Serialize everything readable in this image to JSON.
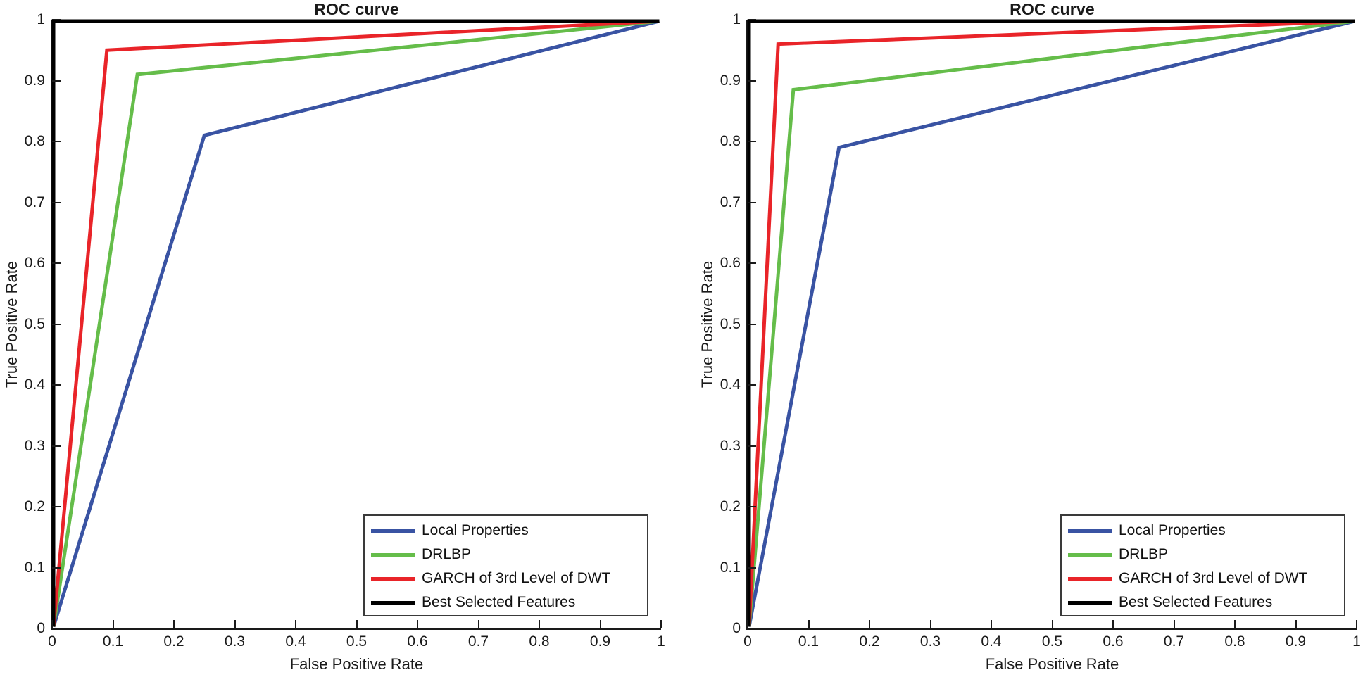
{
  "figure": {
    "background": "#ffffff",
    "axis_color": "#1a1a1a"
  },
  "chart_data": [
    {
      "type": "line",
      "title": "ROC curve",
      "xlabel": "False Positive Rate",
      "ylabel": "True Positive Rate",
      "xlim": [
        0,
        1
      ],
      "ylim": [
        0,
        1
      ],
      "grid": false,
      "legend_position": "lower right",
      "x_ticks": [
        0,
        0.1,
        0.2,
        0.3,
        0.4,
        0.5,
        0.6,
        0.7,
        0.8,
        0.9,
        1
      ],
      "x_tick_labels": [
        "0",
        "0.1",
        "0.2",
        "0.3",
        "0.4",
        "0.5",
        "0.6",
        "0.7",
        "0.8",
        "0.9",
        "1"
      ],
      "y_ticks": [
        0,
        0.1,
        0.2,
        0.3,
        0.4,
        0.5,
        0.6,
        0.7,
        0.8,
        0.9,
        1
      ],
      "y_tick_labels": [
        "0",
        "0.1",
        "0.2",
        "0.3",
        "0.4",
        "0.5",
        "0.6",
        "0.7",
        "0.8",
        "0.9",
        "1"
      ],
      "series": [
        {
          "name": "Local Properties",
          "color": "#3953A3",
          "points": [
            [
              0,
              0
            ],
            [
              0.25,
              0.81
            ],
            [
              1,
              1
            ]
          ]
        },
        {
          "name": "DRLBP",
          "color": "#65BD4A",
          "points": [
            [
              0,
              0
            ],
            [
              0.14,
              0.91
            ],
            [
              1,
              1
            ]
          ]
        },
        {
          "name": "GARCH of 3rd Level of DWT",
          "color": "#E92429",
          "points": [
            [
              0,
              0
            ],
            [
              0.09,
              0.95
            ],
            [
              1,
              1
            ]
          ]
        },
        {
          "name": "Best Selected Features",
          "color": "#000000",
          "points": [
            [
              0,
              0
            ],
            [
              0,
              1
            ],
            [
              1,
              1
            ]
          ]
        }
      ]
    },
    {
      "type": "line",
      "title": "ROC curve",
      "xlabel": "False Positive Rate",
      "ylabel": "True Positive Rate",
      "xlim": [
        0,
        1
      ],
      "ylim": [
        0,
        1
      ],
      "grid": false,
      "legend_position": "lower right",
      "x_ticks": [
        0,
        0.1,
        0.2,
        0.3,
        0.4,
        0.5,
        0.6,
        0.7,
        0.8,
        0.9,
        1
      ],
      "x_tick_labels": [
        "0",
        "0.1",
        "0.2",
        "0.3",
        "0.4",
        "0.5",
        "0.6",
        "0.7",
        "0.8",
        "0.9",
        "1"
      ],
      "y_ticks": [
        0,
        0.1,
        0.2,
        0.3,
        0.4,
        0.5,
        0.6,
        0.7,
        0.8,
        0.9,
        1
      ],
      "y_tick_labels": [
        "0",
        "0.1",
        "0.2",
        "0.3",
        "0.4",
        "0.5",
        "0.6",
        "0.7",
        "0.8",
        "0.9",
        "1"
      ],
      "series": [
        {
          "name": "Local Properties",
          "color": "#3953A3",
          "points": [
            [
              0,
              0
            ],
            [
              0.15,
              0.79
            ],
            [
              1,
              1
            ]
          ]
        },
        {
          "name": "DRLBP",
          "color": "#65BD4A",
          "points": [
            [
              0,
              0
            ],
            [
              0.075,
              0.885
            ],
            [
              1,
              1
            ]
          ]
        },
        {
          "name": "GARCH of 3rd Level of DWT",
          "color": "#E92429",
          "points": [
            [
              0,
              0
            ],
            [
              0.05,
              0.96
            ],
            [
              1,
              1
            ]
          ]
        },
        {
          "name": "Best Selected Features",
          "color": "#000000",
          "points": [
            [
              0,
              0
            ],
            [
              0,
              1
            ],
            [
              1,
              1
            ]
          ]
        }
      ]
    }
  ]
}
